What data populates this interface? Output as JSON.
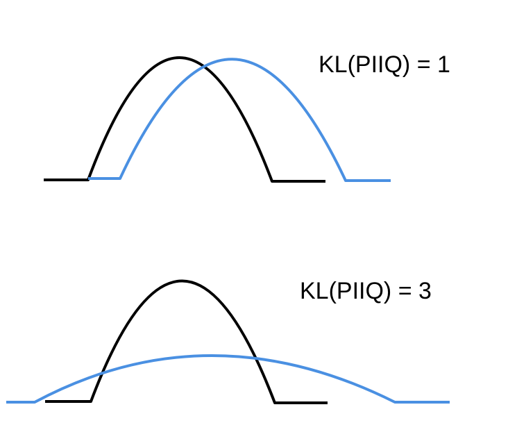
{
  "panels": [
    {
      "id": "top",
      "label": "KL(PIIQ) = 1",
      "p_color": "#000000",
      "q_color": "#4a90e2"
    },
    {
      "id": "bottom",
      "label": "KL(PIIQ) = 3",
      "p_color": "#000000",
      "q_color": "#4a90e2"
    }
  ]
}
